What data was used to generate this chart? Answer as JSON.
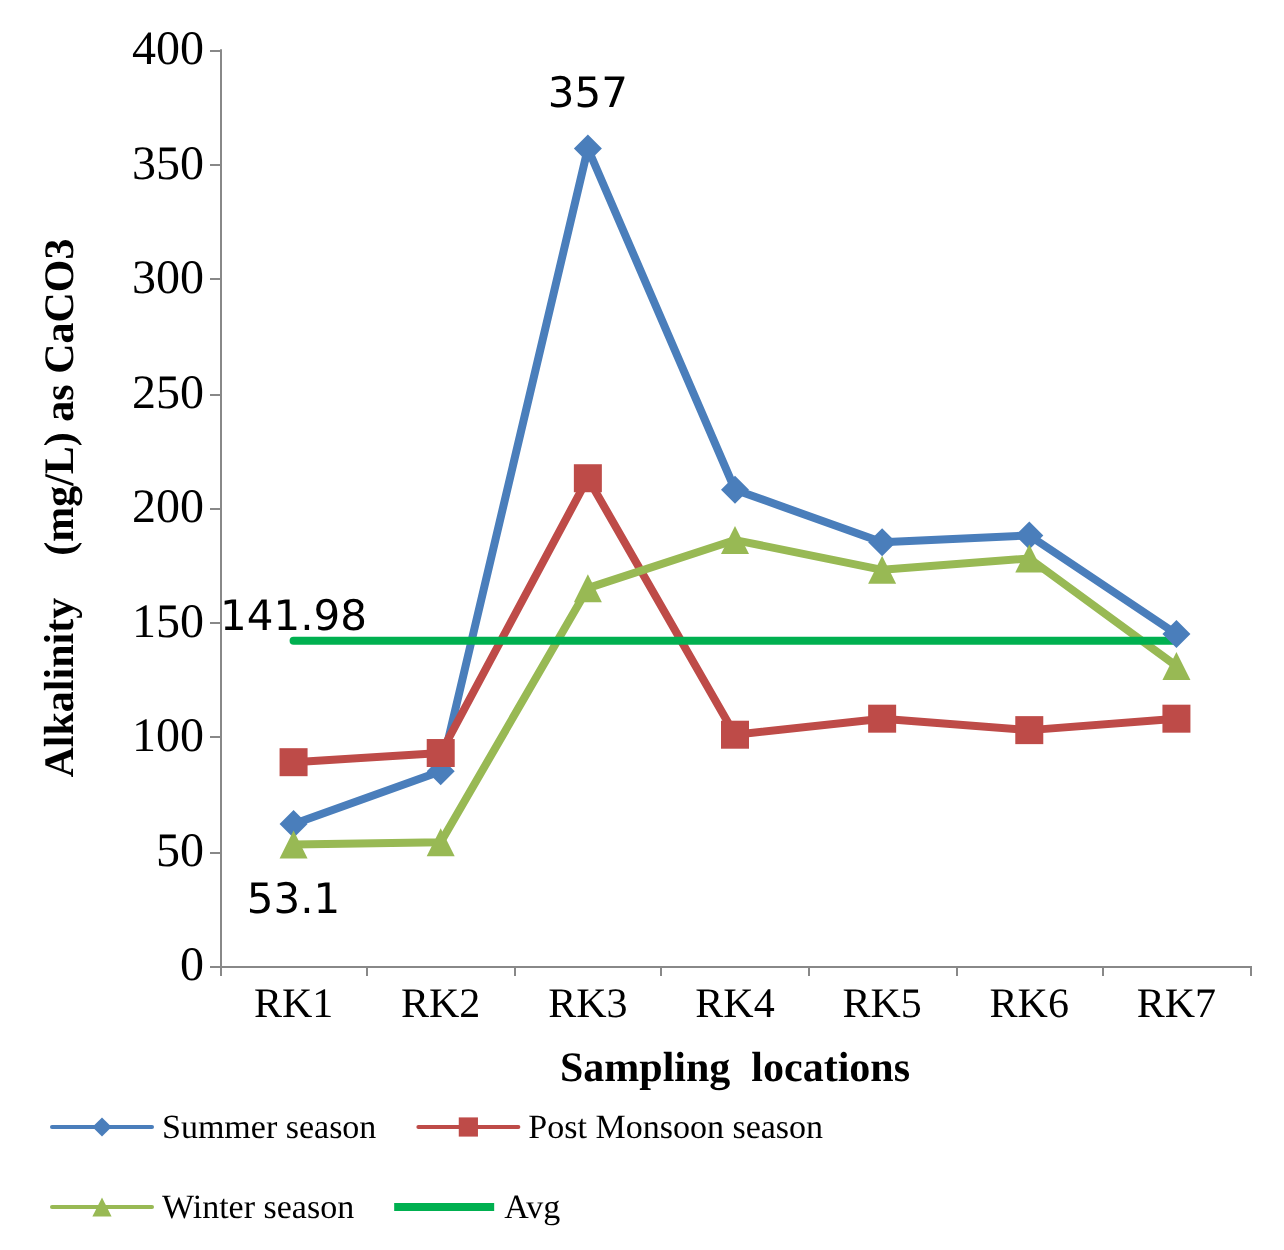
{
  "chart_data": {
    "type": "line",
    "xlabel": "Sampling  locations",
    "ylabel": "Alkalinity    (mg/L) as CaCO3",
    "categories": [
      "RK1",
      "RK2",
      "RK3",
      "RK4",
      "RK5",
      "RK6",
      "RK7"
    ],
    "series": [
      {
        "name": "Summer season",
        "color": "#4a7ebb",
        "marker": "diamond",
        "values": [
          62,
          85,
          357,
          208,
          185,
          188,
          145
        ],
        "value_labels": [
          null,
          null,
          "357",
          null,
          null,
          null,
          null
        ]
      },
      {
        "name": "Post Monsoon season",
        "color": "#be4b48",
        "marker": "square",
        "values": [
          89,
          93,
          213,
          101,
          108,
          103,
          108
        ]
      },
      {
        "name": "Winter season",
        "color": "#98b954",
        "marker": "triangle",
        "values": [
          53.1,
          54,
          165,
          186,
          173,
          178,
          131
        ],
        "value_labels": [
          "53.1",
          null,
          null,
          null,
          null,
          null,
          null
        ]
      },
      {
        "name": "Avg",
        "color": "#00b050",
        "marker": "none",
        "values": [
          141.98,
          141.98,
          141.98,
          141.98,
          141.98,
          141.98,
          141.98
        ],
        "value_labels": [
          "141.98",
          null,
          null,
          null,
          null,
          null,
          null
        ]
      }
    ],
    "ylim": [
      0,
      400
    ],
    "yticks": [
      0,
      50,
      100,
      150,
      200,
      250,
      300,
      350,
      400
    ],
    "grid": false,
    "legend": "bottom",
    "line_style": "solid"
  }
}
